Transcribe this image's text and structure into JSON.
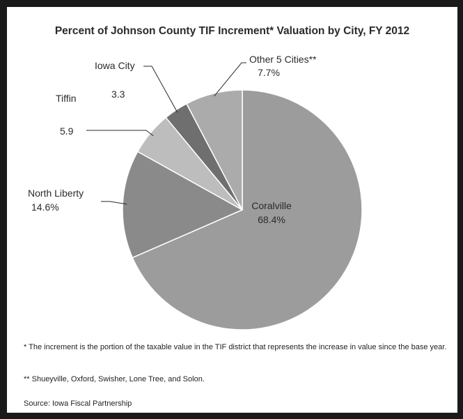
{
  "chart_data": {
    "type": "pie",
    "title": "Percent of Johnson County TIF Increment* Valuation by City, FY 2012",
    "slices": [
      {
        "name": "Coralville",
        "value": 68.4,
        "value_label": "68.4%",
        "color": "#9c9c9c"
      },
      {
        "name": "North Liberty",
        "value": 14.6,
        "value_label": "14.6%",
        "color": "#8a8a8a"
      },
      {
        "name": "Tiffin",
        "value": 5.9,
        "value_label": "5.9",
        "color": "#bdbdbd"
      },
      {
        "name": "Iowa City",
        "value": 3.3,
        "value_label": "3.3",
        "color": "#6f6f6f"
      },
      {
        "name": "Other 5 Cities**",
        "value": 7.7,
        "value_label": "7.7%",
        "color": "#ababab"
      }
    ]
  },
  "footnotes": {
    "increment": "* The increment is the portion of the taxable value in the TIF district that represents the increase in value since the base year.",
    "other_cities": "** Shueyville, Oxford, Swisher, Lone Tree, and Solon.",
    "source": "Source:  Iowa Fiscal Partnership"
  }
}
